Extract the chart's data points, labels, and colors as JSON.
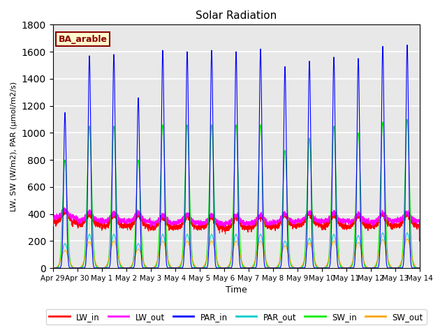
{
  "title": "Solar Radiation",
  "ylabel": "LW, SW (W/m2), PAR (μmol/m2/s)",
  "xlabel": "Time",
  "ylim": [
    0,
    1800
  ],
  "yticks": [
    0,
    200,
    400,
    600,
    800,
    1000,
    1200,
    1400,
    1600,
    1800
  ],
  "xtick_labels": [
    "Apr 29",
    "Apr 30",
    "May 1",
    "May 2",
    "May 3",
    "May 4",
    "May 5",
    "May 6",
    "May 7",
    "May 8",
    "May 9",
    "May 10",
    "May 11",
    "May 12",
    "May 13",
    "May 14"
  ],
  "annotation_text": "BA_arable",
  "annotation_color": "#8B0000",
  "annotation_bg": "#FFFACD",
  "colors": {
    "LW_in": "#FF0000",
    "LW_out": "#FF00FF",
    "PAR_in": "#0000FF",
    "PAR_out": "#00CCCC",
    "SW_in": "#00EE00",
    "SW_out": "#FFA500"
  },
  "background_color": "#E8E8E8",
  "grid_color": "#FFFFFF",
  "fig_bg": "#FFFFFF",
  "n_days": 15,
  "par_in_peaks": [
    1150,
    1570,
    1580,
    1260,
    1610,
    1600,
    1610,
    1600,
    1620,
    1490,
    1530,
    1560,
    1550,
    1640,
    1650
  ],
  "sw_in_peaks": [
    800,
    1050,
    1050,
    800,
    1060,
    1060,
    1060,
    1060,
    1060,
    870,
    960,
    1050,
    1000,
    1080,
    1100
  ],
  "par_out_peaks": [
    180,
    250,
    250,
    180,
    250,
    250,
    250,
    250,
    250,
    200,
    220,
    250,
    240,
    260,
    260
  ],
  "sw_out_peaks": [
    130,
    195,
    200,
    140,
    200,
    200,
    200,
    200,
    200,
    165,
    185,
    200,
    190,
    210,
    215
  ],
  "lw_in_base": [
    340,
    320,
    310,
    310,
    300,
    300,
    300,
    295,
    300,
    310,
    320,
    310,
    305,
    310,
    315
  ],
  "lw_out_base": [
    370,
    350,
    345,
    345,
    330,
    335,
    330,
    330,
    330,
    340,
    350,
    345,
    340,
    345,
    350
  ]
}
